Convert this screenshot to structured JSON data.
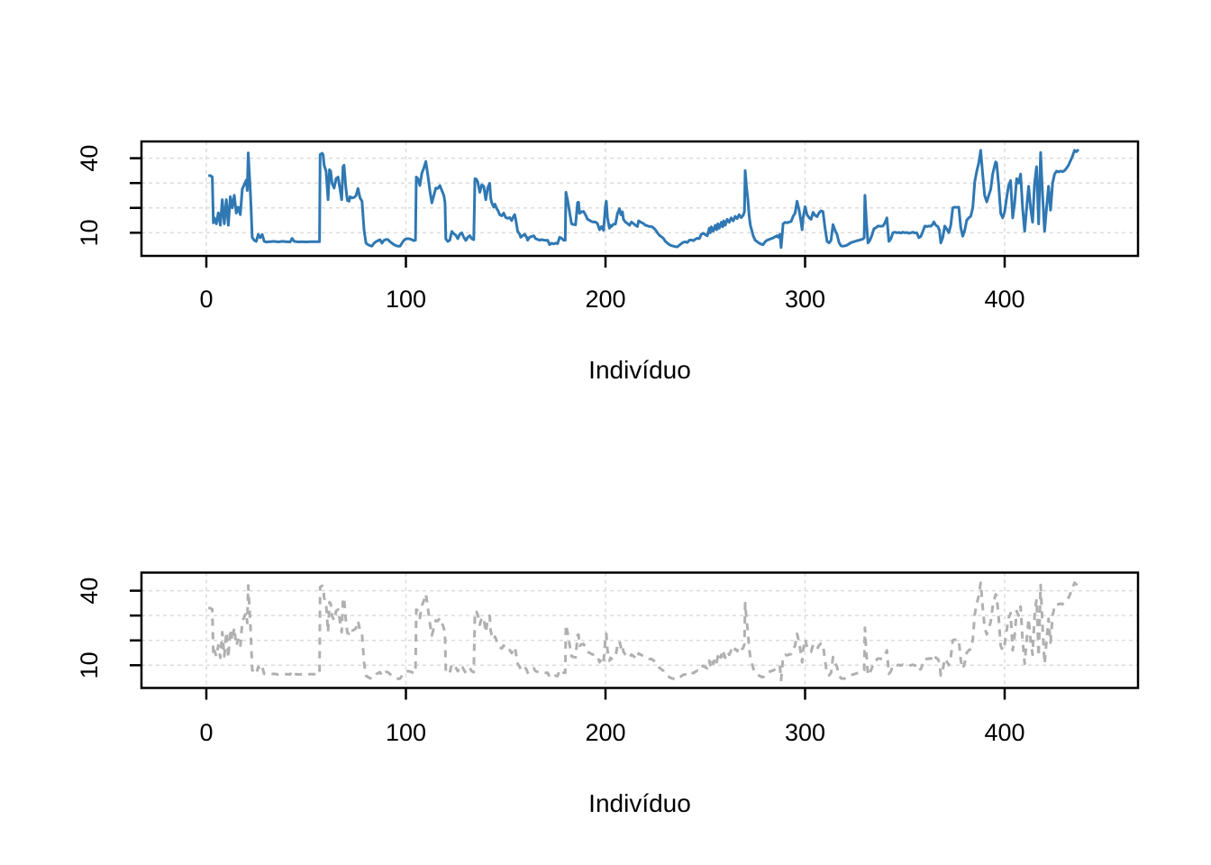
{
  "page": {
    "background": "#ffffff"
  },
  "labels": {
    "x_axis_title": "Indivíduo"
  },
  "colors": {
    "top_line": "#2f78b3",
    "bottom_line": "#b0b0b0",
    "grid": "#dcdcdc",
    "frame": "#000000",
    "text": "#000000"
  },
  "chart_data": [
    {
      "type": "line",
      "title": "",
      "xlabel": "Indivíduo",
      "ylabel": "",
      "x_ticks": [
        0,
        100,
        200,
        300,
        400
      ],
      "x_tick_labels": [
        "0",
        "100",
        "200",
        "300",
        "400"
      ],
      "y_ticks": [
        10,
        20,
        30,
        40
      ],
      "y_tick_labels_visible": [
        "10",
        "40"
      ],
      "y_label_rotation": 90,
      "xlim": [
        -32,
        467
      ],
      "ylim": [
        1,
        47
      ],
      "grid": true,
      "legend_position": "none",
      "series": [
        {
          "name": "individuo-series",
          "style": "solid",
          "color": "#2f78b3",
          "points_ref": "shared_points"
        }
      ]
    },
    {
      "type": "line",
      "title": "",
      "xlabel": "Indivíduo",
      "ylabel": "",
      "x_ticks": [
        0,
        100,
        200,
        300,
        400
      ],
      "x_tick_labels": [
        "0",
        "100",
        "200",
        "300",
        "400"
      ],
      "y_ticks": [
        10,
        20,
        30,
        40
      ],
      "y_tick_labels_visible": [
        "10",
        "40"
      ],
      "y_label_rotation": 90,
      "xlim": [
        -32,
        467
      ],
      "ylim": [
        1,
        47
      ],
      "grid": true,
      "legend_position": "none",
      "series": [
        {
          "name": "individuo-series-dashed",
          "style": "dashed",
          "color": "#b0b0b0",
          "points_ref": "shared_points"
        }
      ]
    }
  ],
  "shared_points": [
    [
      1,
      33
    ],
    [
      2,
      33
    ],
    [
      3,
      32.5
    ],
    [
      3.5,
      14
    ],
    [
      4,
      16
    ],
    [
      5,
      13.6
    ],
    [
      6,
      18
    ],
    [
      7,
      13
    ],
    [
      8,
      23.3
    ],
    [
      9,
      13.6
    ],
    [
      10,
      23.3
    ],
    [
      11,
      13
    ],
    [
      12,
      24.5
    ],
    [
      13,
      20
    ],
    [
      14,
      25.1
    ],
    [
      15,
      17.9
    ],
    [
      16,
      20.3
    ],
    [
      17,
      17.3
    ],
    [
      18,
      27.6
    ],
    [
      19,
      29.4
    ],
    [
      20,
      31.2
    ],
    [
      20.5,
      27
    ],
    [
      21,
      42.1
    ],
    [
      22,
      27.6
    ],
    [
      22.4,
      20.3
    ],
    [
      23,
      8.1
    ],
    [
      24,
      6.9
    ],
    [
      25,
      6.5
    ],
    [
      26,
      9.3
    ],
    [
      27,
      8
    ],
    [
      28,
      9.3
    ],
    [
      29,
      6.5
    ],
    [
      30,
      6.3
    ],
    [
      32,
      6.4
    ],
    [
      34,
      6.5
    ],
    [
      36,
      6.3
    ],
    [
      38,
      6.5
    ],
    [
      40,
      6.4
    ],
    [
      42,
      6.3
    ],
    [
      43,
      7.7
    ],
    [
      44,
      6.5
    ],
    [
      46,
      6.3
    ],
    [
      48,
      6.4
    ],
    [
      50,
      6.3
    ],
    [
      52,
      6.4
    ],
    [
      54,
      6.4
    ],
    [
      56,
      6.4
    ],
    [
      56.7,
      6.4
    ],
    [
      57,
      41.5
    ],
    [
      58,
      42
    ],
    [
      58.5,
      41.4
    ],
    [
      59,
      37.2
    ],
    [
      60,
      34.8
    ],
    [
      61,
      23.3
    ],
    [
      61.7,
      35.4
    ],
    [
      62.3,
      34.8
    ],
    [
      63,
      29.9
    ],
    [
      64,
      28
    ],
    [
      65,
      31.8
    ],
    [
      66,
      32.4
    ],
    [
      67,
      27.5
    ],
    [
      67.8,
      23.3
    ],
    [
      68.5,
      36.6
    ],
    [
      69,
      37.2
    ],
    [
      70,
      27.5
    ],
    [
      70.7,
      23
    ],
    [
      71.5,
      22.7
    ],
    [
      72,
      24.5
    ],
    [
      73,
      24
    ],
    [
      74,
      24.2
    ],
    [
      75,
      24.9
    ],
    [
      76,
      27.8
    ],
    [
      77,
      24
    ],
    [
      78,
      22.7
    ],
    [
      79,
      11.2
    ],
    [
      80,
      5.8
    ],
    [
      81,
      5.2
    ],
    [
      82,
      4.8
    ],
    [
      83,
      4.6
    ],
    [
      84,
      5.8
    ],
    [
      85,
      6.4
    ],
    [
      86,
      6.8
    ],
    [
      87,
      7.2
    ],
    [
      88,
      5.8
    ],
    [
      89,
      6.9
    ],
    [
      90,
      7.3
    ],
    [
      91,
      7.2
    ],
    [
      92,
      6.4
    ],
    [
      93,
      5.8
    ],
    [
      94,
      5.2
    ],
    [
      95,
      4.8
    ],
    [
      96,
      4.6
    ],
    [
      97,
      4.6
    ],
    [
      98,
      5.8
    ],
    [
      99,
      7
    ],
    [
      100,
      7.5
    ],
    [
      101,
      7.6
    ],
    [
      102,
      7.5
    ],
    [
      103,
      7.2
    ],
    [
      104,
      6.8
    ],
    [
      104.8,
      7
    ],
    [
      105.2,
      32.4
    ],
    [
      106,
      31.8
    ],
    [
      107,
      29
    ],
    [
      108,
      34
    ],
    [
      109,
      36
    ],
    [
      110,
      38.7
    ],
    [
      111,
      33
    ],
    [
      112,
      26.9
    ],
    [
      113,
      22
    ],
    [
      114,
      25
    ],
    [
      115,
      28
    ],
    [
      116,
      27.8
    ],
    [
      117,
      29
    ],
    [
      118,
      27
    ],
    [
      119,
      25
    ],
    [
      119.6,
      22
    ],
    [
      120,
      7.5
    ],
    [
      121,
      6.5
    ],
    [
      122,
      7
    ],
    [
      123,
      10.5
    ],
    [
      124,
      9.6
    ],
    [
      125,
      9
    ],
    [
      126,
      7.6
    ],
    [
      127,
      9.4
    ],
    [
      128,
      10
    ],
    [
      129,
      8.2
    ],
    [
      130,
      6.9
    ],
    [
      131,
      8.2
    ],
    [
      132,
      8.8
    ],
    [
      133,
      7.6
    ],
    [
      134,
      7.2
    ],
    [
      134.6,
      31.8
    ],
    [
      135.3,
      31.5
    ],
    [
      136,
      30.5
    ],
    [
      137,
      26.3
    ],
    [
      138,
      29.3
    ],
    [
      139,
      28.7
    ],
    [
      140,
      23.3
    ],
    [
      141,
      28.1
    ],
    [
      142,
      29.9
    ],
    [
      142.5,
      23.9
    ],
    [
      143,
      22.1
    ],
    [
      144,
      20.3
    ],
    [
      144.6,
      21.5
    ],
    [
      145.5,
      19.7
    ],
    [
      146,
      19.1
    ],
    [
      147,
      17.3
    ],
    [
      148,
      16.8
    ],
    [
      149,
      17.9
    ],
    [
      150,
      16.1
    ],
    [
      151,
      15.8
    ],
    [
      152,
      16.1
    ],
    [
      153,
      14.9
    ],
    [
      154,
      16.7
    ],
    [
      154.5,
      17.3
    ],
    [
      155,
      15.5
    ],
    [
      156,
      10.6
    ],
    [
      157,
      9.4
    ],
    [
      157.5,
      8.2
    ],
    [
      158.5,
      8.8
    ],
    [
      159.5,
      9.4
    ],
    [
      160.5,
      8.2
    ],
    [
      161,
      7
    ],
    [
      162,
      8.2
    ],
    [
      164,
      8.8
    ],
    [
      165,
      7.6
    ],
    [
      167,
      7
    ],
    [
      168,
      7.2
    ],
    [
      170,
      6.9
    ],
    [
      171,
      7
    ],
    [
      172,
      5.2
    ],
    [
      173,
      5.8
    ],
    [
      174,
      5.5
    ],
    [
      175,
      5.8
    ],
    [
      176,
      5.6
    ],
    [
      177,
      8.2
    ],
    [
      178,
      7.8
    ],
    [
      179,
      7
    ],
    [
      179.8,
      7
    ],
    [
      180.2,
      26.3
    ],
    [
      181,
      23.2
    ],
    [
      182,
      18.4
    ],
    [
      183,
      13.6
    ],
    [
      184,
      13.3
    ],
    [
      185,
      13.2
    ],
    [
      186,
      22.1
    ],
    [
      186.5,
      22.3
    ],
    [
      187,
      17.8
    ],
    [
      188,
      18.4
    ],
    [
      189,
      18.6
    ],
    [
      190,
      17.2
    ],
    [
      191,
      15.4
    ],
    [
      192,
      15
    ],
    [
      193,
      14.5
    ],
    [
      194,
      14.3
    ],
    [
      195,
      14.3
    ],
    [
      196,
      13.7
    ],
    [
      197,
      11.2
    ],
    [
      198,
      12.5
    ],
    [
      199,
      11
    ],
    [
      200,
      20.9
    ],
    [
      200.4,
      22.7
    ],
    [
      201,
      16
    ],
    [
      202,
      11.8
    ],
    [
      202.5,
      13
    ],
    [
      203,
      12.5
    ],
    [
      204,
      13.5
    ],
    [
      205,
      13.5
    ],
    [
      206,
      17.8
    ],
    [
      207,
      19.7
    ],
    [
      207.7,
      17.2
    ],
    [
      208.5,
      18.4
    ],
    [
      209,
      15.4
    ],
    [
      210,
      14.3
    ],
    [
      211,
      13.7
    ],
    [
      212,
      13
    ],
    [
      213,
      14.3
    ],
    [
      214,
      13.7
    ],
    [
      215,
      13
    ],
    [
      216,
      12.5
    ],
    [
      216.6,
      14.8
    ],
    [
      217.5,
      14.3
    ],
    [
      219,
      13.7
    ],
    [
      220,
      13
    ],
    [
      221,
      12.8
    ],
    [
      222,
      12.5
    ],
    [
      223,
      12.5
    ],
    [
      224,
      12
    ],
    [
      225,
      11.2
    ],
    [
      226,
      10
    ],
    [
      227,
      9
    ],
    [
      228,
      8.4
    ],
    [
      229,
      7.8
    ],
    [
      230,
      6.5
    ],
    [
      231,
      5.8
    ],
    [
      232,
      5.2
    ],
    [
      233,
      4.8
    ],
    [
      234,
      4.6
    ],
    [
      235,
      4.4
    ],
    [
      236,
      4.3
    ],
    [
      237,
      5
    ],
    [
      238,
      5.6
    ],
    [
      239,
      6.2
    ],
    [
      240,
      6.3
    ],
    [
      241,
      6.1
    ],
    [
      242,
      7
    ],
    [
      243,
      7.1
    ],
    [
      244,
      6.8
    ],
    [
      245,
      7.4
    ],
    [
      246,
      7.8
    ],
    [
      247,
      7.6
    ],
    [
      248,
      9.4
    ],
    [
      249,
      9.8
    ],
    [
      250,
      9.2
    ],
    [
      251,
      8.8
    ],
    [
      252,
      11.8
    ],
    [
      252.5,
      10
    ],
    [
      253,
      12.4
    ],
    [
      254,
      10.6
    ],
    [
      255,
      13
    ],
    [
      255.7,
      11.2
    ],
    [
      256.3,
      13.6
    ],
    [
      257,
      11.8
    ],
    [
      258,
      14.2
    ],
    [
      258.7,
      12.4
    ],
    [
      259.3,
      14.8
    ],
    [
      260,
      13
    ],
    [
      261,
      15.4
    ],
    [
      262,
      14.2
    ],
    [
      263,
      16
    ],
    [
      264,
      14.8
    ],
    [
      265,
      16.6
    ],
    [
      266,
      15.7
    ],
    [
      267,
      17.3
    ],
    [
      268,
      16.1
    ],
    [
      269,
      17
    ],
    [
      269.6,
      18.5
    ],
    [
      270,
      35
    ],
    [
      270.7,
      28
    ],
    [
      271.3,
      23.9
    ],
    [
      272,
      16.6
    ],
    [
      272.6,
      13
    ],
    [
      273.4,
      10.6
    ],
    [
      274,
      8.8
    ],
    [
      275,
      7
    ],
    [
      276,
      6.4
    ],
    [
      277,
      5.8
    ],
    [
      278,
      5.4
    ],
    [
      279,
      5.2
    ],
    [
      280,
      6.4
    ],
    [
      281,
      7
    ],
    [
      282,
      7.3
    ],
    [
      283,
      7.6
    ],
    [
      284,
      7.9
    ],
    [
      285,
      8.4
    ],
    [
      286,
      8.8
    ],
    [
      286.6,
      8.2
    ],
    [
      287.4,
      9.4
    ],
    [
      288,
      4
    ],
    [
      289,
      13.6
    ],
    [
      290,
      14.2
    ],
    [
      291,
      14
    ],
    [
      292,
      14.3
    ],
    [
      293,
      14.5
    ],
    [
      294,
      16.6
    ],
    [
      295,
      17.9
    ],
    [
      296,
      22.7
    ],
    [
      297,
      19.1
    ],
    [
      298,
      14.2
    ],
    [
      298.5,
      11.2
    ],
    [
      299,
      16
    ],
    [
      300,
      20.5
    ],
    [
      301,
      17.3
    ],
    [
      302,
      16.1
    ],
    [
      303,
      15.4
    ],
    [
      304,
      18.2
    ],
    [
      305,
      17
    ],
    [
      306,
      16.5
    ],
    [
      307,
      18
    ],
    [
      308,
      18.8
    ],
    [
      309,
      18.5
    ],
    [
      310,
      12
    ],
    [
      311,
      6.5
    ],
    [
      312,
      5.9
    ],
    [
      313,
      7
    ],
    [
      314,
      13.3
    ],
    [
      315,
      11
    ],
    [
      316,
      9.4
    ],
    [
      317,
      6
    ],
    [
      318,
      4.7
    ],
    [
      319,
      4.6
    ],
    [
      320,
      4.7
    ],
    [
      321,
      5
    ],
    [
      322,
      5.5
    ],
    [
      323,
      6
    ],
    [
      324,
      6.3
    ],
    [
      325,
      6.5
    ],
    [
      326,
      6.8
    ],
    [
      327,
      7
    ],
    [
      328,
      7.2
    ],
    [
      329,
      7.5
    ],
    [
      329.6,
      8
    ],
    [
      330,
      25.1
    ],
    [
      330.7,
      15
    ],
    [
      331.5,
      5.9
    ],
    [
      332.5,
      7
    ],
    [
      333.5,
      9
    ],
    [
      334.5,
      11.6
    ],
    [
      335.5,
      12
    ],
    [
      336.5,
      12.7
    ],
    [
      338,
      12.6
    ],
    [
      339,
      12.7
    ],
    [
      340,
      14
    ],
    [
      341,
      16
    ],
    [
      342,
      6.5
    ],
    [
      343,
      7.5
    ],
    [
      344,
      10
    ],
    [
      345,
      10.2
    ],
    [
      346,
      10
    ],
    [
      347,
      10.1
    ],
    [
      348,
      9.9
    ],
    [
      349,
      10.2
    ],
    [
      350,
      10
    ],
    [
      351,
      10.1
    ],
    [
      352,
      9.8
    ],
    [
      353,
      10
    ],
    [
      354,
      10.2
    ],
    [
      355,
      9.9
    ],
    [
      356,
      10
    ],
    [
      357,
      8
    ],
    [
      358,
      8.5
    ],
    [
      359,
      10.5
    ],
    [
      360,
      12.7
    ],
    [
      361,
      12.5
    ],
    [
      362,
      12.7
    ],
    [
      363,
      12.6
    ],
    [
      364,
      13.5
    ],
    [
      364.5,
      14.4
    ],
    [
      365.5,
      13
    ],
    [
      366.5,
      12.5
    ],
    [
      367.3,
      11
    ],
    [
      368,
      5.9
    ],
    [
      369,
      8
    ],
    [
      370,
      12.7
    ],
    [
      371,
      11.5
    ],
    [
      372,
      10
    ],
    [
      373,
      13
    ],
    [
      374,
      20
    ],
    [
      375,
      20.3
    ],
    [
      376,
      20.2
    ],
    [
      377,
      20.3
    ],
    [
      378,
      12
    ],
    [
      379,
      8.6
    ],
    [
      380,
      11
    ],
    [
      381,
      15
    ],
    [
      382,
      16
    ],
    [
      383,
      16.6
    ],
    [
      384,
      20
    ],
    [
      385,
      30.5
    ],
    [
      386,
      34.7
    ],
    [
      387,
      38
    ],
    [
      388,
      43.2
    ],
    [
      389,
      33.5
    ],
    [
      390,
      25
    ],
    [
      391,
      22.4
    ],
    [
      392,
      25
    ],
    [
      393,
      27.4
    ],
    [
      394,
      33.6
    ],
    [
      395,
      37
    ],
    [
      395.5,
      38.5
    ],
    [
      396,
      38
    ],
    [
      397,
      29
    ],
    [
      398,
      17.8
    ],
    [
      399,
      16
    ],
    [
      400,
      18.5
    ],
    [
      401,
      24
    ],
    [
      402,
      29
    ],
    [
      403,
      31
    ],
    [
      404,
      16
    ],
    [
      405,
      22
    ],
    [
      406,
      31.8
    ],
    [
      407,
      30
    ],
    [
      408,
      33.6
    ],
    [
      409,
      20
    ],
    [
      410,
      10.6
    ],
    [
      411,
      20
    ],
    [
      412,
      28.7
    ],
    [
      413,
      20
    ],
    [
      414,
      14.2
    ],
    [
      415,
      30
    ],
    [
      416,
      36.6
    ],
    [
      417,
      13.6
    ],
    [
      418,
      42.3
    ],
    [
      419,
      25
    ],
    [
      420,
      10.6
    ],
    [
      421,
      20
    ],
    [
      422,
      28.7
    ],
    [
      423,
      19.1
    ],
    [
      424,
      30
    ],
    [
      425,
      33.6
    ],
    [
      426,
      34.8
    ],
    [
      427,
      34.5
    ],
    [
      428,
      34.8
    ],
    [
      429,
      34.6
    ],
    [
      430,
      35
    ],
    [
      431,
      36
    ],
    [
      432,
      37.2
    ],
    [
      433,
      39
    ],
    [
      434,
      40.8
    ],
    [
      435,
      43.2
    ],
    [
      436,
      42.6
    ],
    [
      437,
      43.5
    ]
  ]
}
